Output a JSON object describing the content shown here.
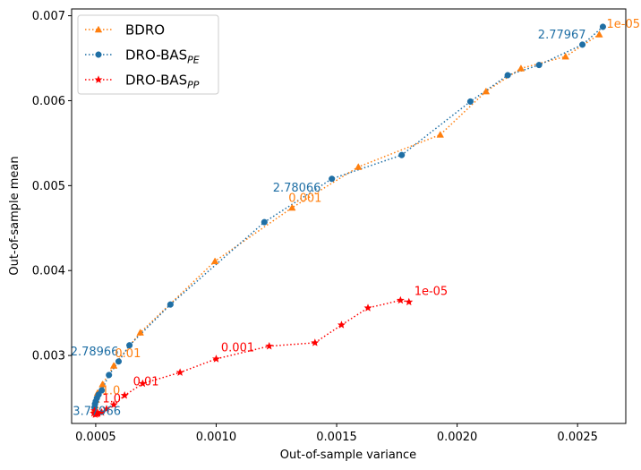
{
  "chart_data": {
    "type": "line",
    "title": "",
    "xlabel": "Out-of-sample variance",
    "ylabel": "Out-of-sample mean",
    "xlim": [
      0.0004,
      0.0027
    ],
    "ylim": [
      0.0022,
      0.00708
    ],
    "xticks": [
      0.0005,
      0.001,
      0.0015,
      0.002,
      0.0025
    ],
    "xtick_labels": [
      "0.0005",
      "0.0010",
      "0.0015",
      "0.0020",
      "0.0025"
    ],
    "yticks": [
      0.003,
      0.004,
      0.005,
      0.006,
      0.007
    ],
    "ytick_labels": [
      "0.003",
      "0.004",
      "0.005",
      "0.006",
      "0.007"
    ],
    "grid": false,
    "legend_position": "top-left",
    "series": [
      {
        "name": "BDRO",
        "legend_label": "BDRO",
        "legend_sub": "",
        "color": "#ff7f0e",
        "marker": "triangle",
        "x": [
          0.000495,
          0.000498,
          0.000502,
          0.000508,
          0.000528,
          0.000575,
          0.000685,
          0.000995,
          0.001315,
          0.00159,
          0.00193,
          0.00212,
          0.002265,
          0.00245,
          0.00259
        ],
        "y": [
          0.00236,
          0.00241,
          0.00248,
          0.00256,
          0.00266,
          0.00288,
          0.00327,
          0.00411,
          0.00474,
          0.00522,
          0.0056,
          0.00611,
          0.00638,
          0.00652,
          0.00678
        ]
      },
      {
        "name": "DRO-BAS_PE",
        "legend_label": "DRO-BAS",
        "legend_sub": "PE",
        "color": "#1f6fa5",
        "marker": "circle",
        "x": [
          0.000495,
          0.000497,
          0.0005,
          0.000505,
          0.000512,
          0.000525,
          0.000555,
          0.000595,
          0.00064,
          0.00081,
          0.0012,
          0.00148,
          0.00177,
          0.002055,
          0.00221,
          0.00234,
          0.00252,
          0.002605
        ],
        "y": [
          0.00239,
          0.00243,
          0.00246,
          0.0025,
          0.00254,
          0.00259,
          0.00277,
          0.00293,
          0.00312,
          0.0036,
          0.00457,
          0.00508,
          0.00536,
          0.00599,
          0.0063,
          0.00642,
          0.00666,
          0.00687
        ]
      },
      {
        "name": "DRO-BAS_PP",
        "legend_label": "DRO-BAS",
        "legend_sub": "PP",
        "color": "#ff0000",
        "marker": "star",
        "x": [
          0.000495,
          0.000492,
          0.000498,
          0.000505,
          0.00051,
          0.000525,
          0.000545,
          0.000575,
          0.00062,
          0.000695,
          0.00085,
          0.001,
          0.00122,
          0.00141,
          0.00152,
          0.00163,
          0.001765,
          0.0018
        ],
        "y": [
          0.00235,
          0.00232,
          0.002305,
          0.00231,
          0.002318,
          0.00233,
          0.00237,
          0.00242,
          0.00253,
          0.00267,
          0.0028,
          0.00296,
          0.00311,
          0.00315,
          0.00336,
          0.00356,
          0.00365,
          0.00363
        ]
      }
    ],
    "annotations": [
      {
        "text": "1e-05",
        "x": 0.00262,
        "y": 0.00686,
        "color": "#ff7f0e"
      },
      {
        "text": "2.77967",
        "x": 0.002335,
        "y": 0.00673,
        "color": "#1f6fa5"
      },
      {
        "text": "2.78066",
        "x": 0.001235,
        "y": 0.00493,
        "color": "#1f6fa5"
      },
      {
        "text": "0.001",
        "x": 0.0013,
        "y": 0.00481,
        "color": "#ff7f0e"
      },
      {
        "text": "2.78966",
        "x": 0.000395,
        "y": 0.003,
        "color": "#1f6fa5"
      },
      {
        "text": "0.01",
        "x": 0.00058,
        "y": 0.00298,
        "color": "#ff7f0e"
      },
      {
        "text": "1.0",
        "x": 0.000525,
        "y": 0.00254,
        "color": "#ff7f0e"
      },
      {
        "text": "3.77966",
        "x": 0.000405,
        "y": 0.0023,
        "color": "#1f6fa5"
      },
      {
        "text": "1e-05",
        "x": 0.001822,
        "y": 0.00371,
        "color": "#ff0000"
      },
      {
        "text": "0.001",
        "x": 0.00102,
        "y": 0.00305,
        "color": "#ff0000"
      },
      {
        "text": "0.01",
        "x": 0.000655,
        "y": 0.00265,
        "color": "#ff0000"
      },
      {
        "text": "1.0",
        "x": 0.000528,
        "y": 0.00245,
        "color": "#ff0000"
      }
    ]
  }
}
